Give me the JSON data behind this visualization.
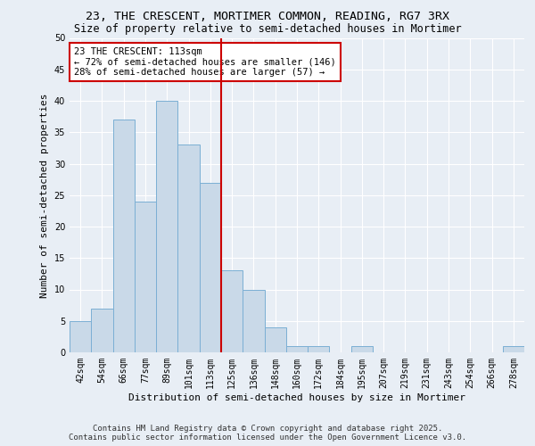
{
  "title_line1": "23, THE CRESCENT, MORTIMER COMMON, READING, RG7 3RX",
  "title_line2": "Size of property relative to semi-detached houses in Mortimer",
  "xlabel": "Distribution of semi-detached houses by size in Mortimer",
  "ylabel": "Number of semi-detached properties",
  "bin_labels": [
    "42sqm",
    "54sqm",
    "66sqm",
    "77sqm",
    "89sqm",
    "101sqm",
    "113sqm",
    "125sqm",
    "136sqm",
    "148sqm",
    "160sqm",
    "172sqm",
    "184sqm",
    "195sqm",
    "207sqm",
    "219sqm",
    "231sqm",
    "243sqm",
    "254sqm",
    "266sqm",
    "278sqm"
  ],
  "bar_values": [
    5,
    7,
    37,
    24,
    40,
    33,
    27,
    13,
    10,
    4,
    1,
    1,
    0,
    1,
    0,
    0,
    0,
    0,
    0,
    0,
    1
  ],
  "bar_color": "#c9d9e8",
  "bar_edgecolor": "#7bafd4",
  "subject_bin_index": 6,
  "subject_label": "23 THE CRESCENT: 113sqm",
  "annotation_line2": "← 72% of semi-detached houses are smaller (146)",
  "annotation_line3": "28% of semi-detached houses are larger (57) →",
  "vline_color": "#cc0000",
  "annotation_box_edgecolor": "#cc0000",
  "ylim": [
    0,
    50
  ],
  "yticks": [
    0,
    5,
    10,
    15,
    20,
    25,
    30,
    35,
    40,
    45,
    50
  ],
  "bg_color": "#e8eef5",
  "plot_bg_color": "#e8eef5",
  "footer_line1": "Contains HM Land Registry data © Crown copyright and database right 2025.",
  "footer_line2": "Contains public sector information licensed under the Open Government Licence v3.0.",
  "title_fontsize": 9.5,
  "subtitle_fontsize": 8.5,
  "axis_label_fontsize": 8,
  "tick_fontsize": 7,
  "annotation_fontsize": 7.5,
  "footer_fontsize": 6.5
}
